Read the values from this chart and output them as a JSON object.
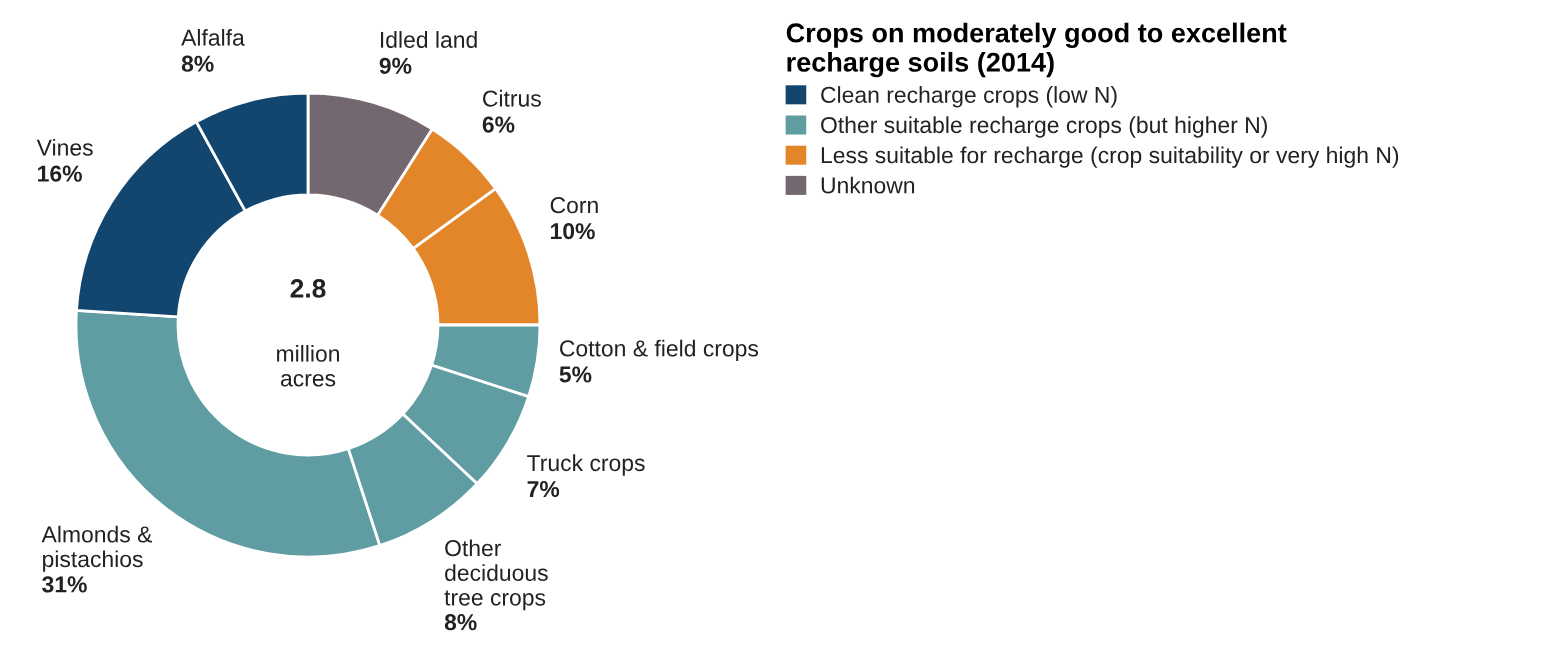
{
  "chart_data": [
    {
      "type": "donut",
      "categories": [
        "Idled land",
        "Citrus",
        "Corn",
        "Cotton & field crops",
        "Truck crops",
        "Other\ndeciduous\ntree crops",
        "Almonds &\npistachios",
        "Vines",
        "Alfalfa"
      ],
      "values": [
        9,
        6,
        10,
        5,
        7,
        8,
        31,
        16,
        8
      ],
      "colors": [
        "#736870",
        "#e3862a",
        "#e3862a",
        "#609da3",
        "#609da3",
        "#609da3",
        "#609da3",
        "#12466f",
        "#12466f"
      ],
      "value_labels": [
        "9%",
        "6%",
        "10%",
        "5%",
        "7%",
        "8%",
        "31%",
        "16%",
        "8%"
      ],
      "annotations": [
        "2.8",
        "million\nacres"
      ]
    },
    {
      "type": "other",
      "legend_title": "Crops on moderately good to excellent\nrecharge soils (2014)",
      "legend": "top right",
      "series": [
        {
          "name": "Clean recharge crops (low N)",
          "color": "#12466f"
        },
        {
          "name": "Other suitable recharge crops (but higher N)",
          "color": "#609da3"
        },
        {
          "name": "Less suitable for recharge (crop suitability or very high N)",
          "color": "#e3862a"
        },
        {
          "name": "Unknown",
          "color": "#736870"
        }
      ]
    }
  ]
}
